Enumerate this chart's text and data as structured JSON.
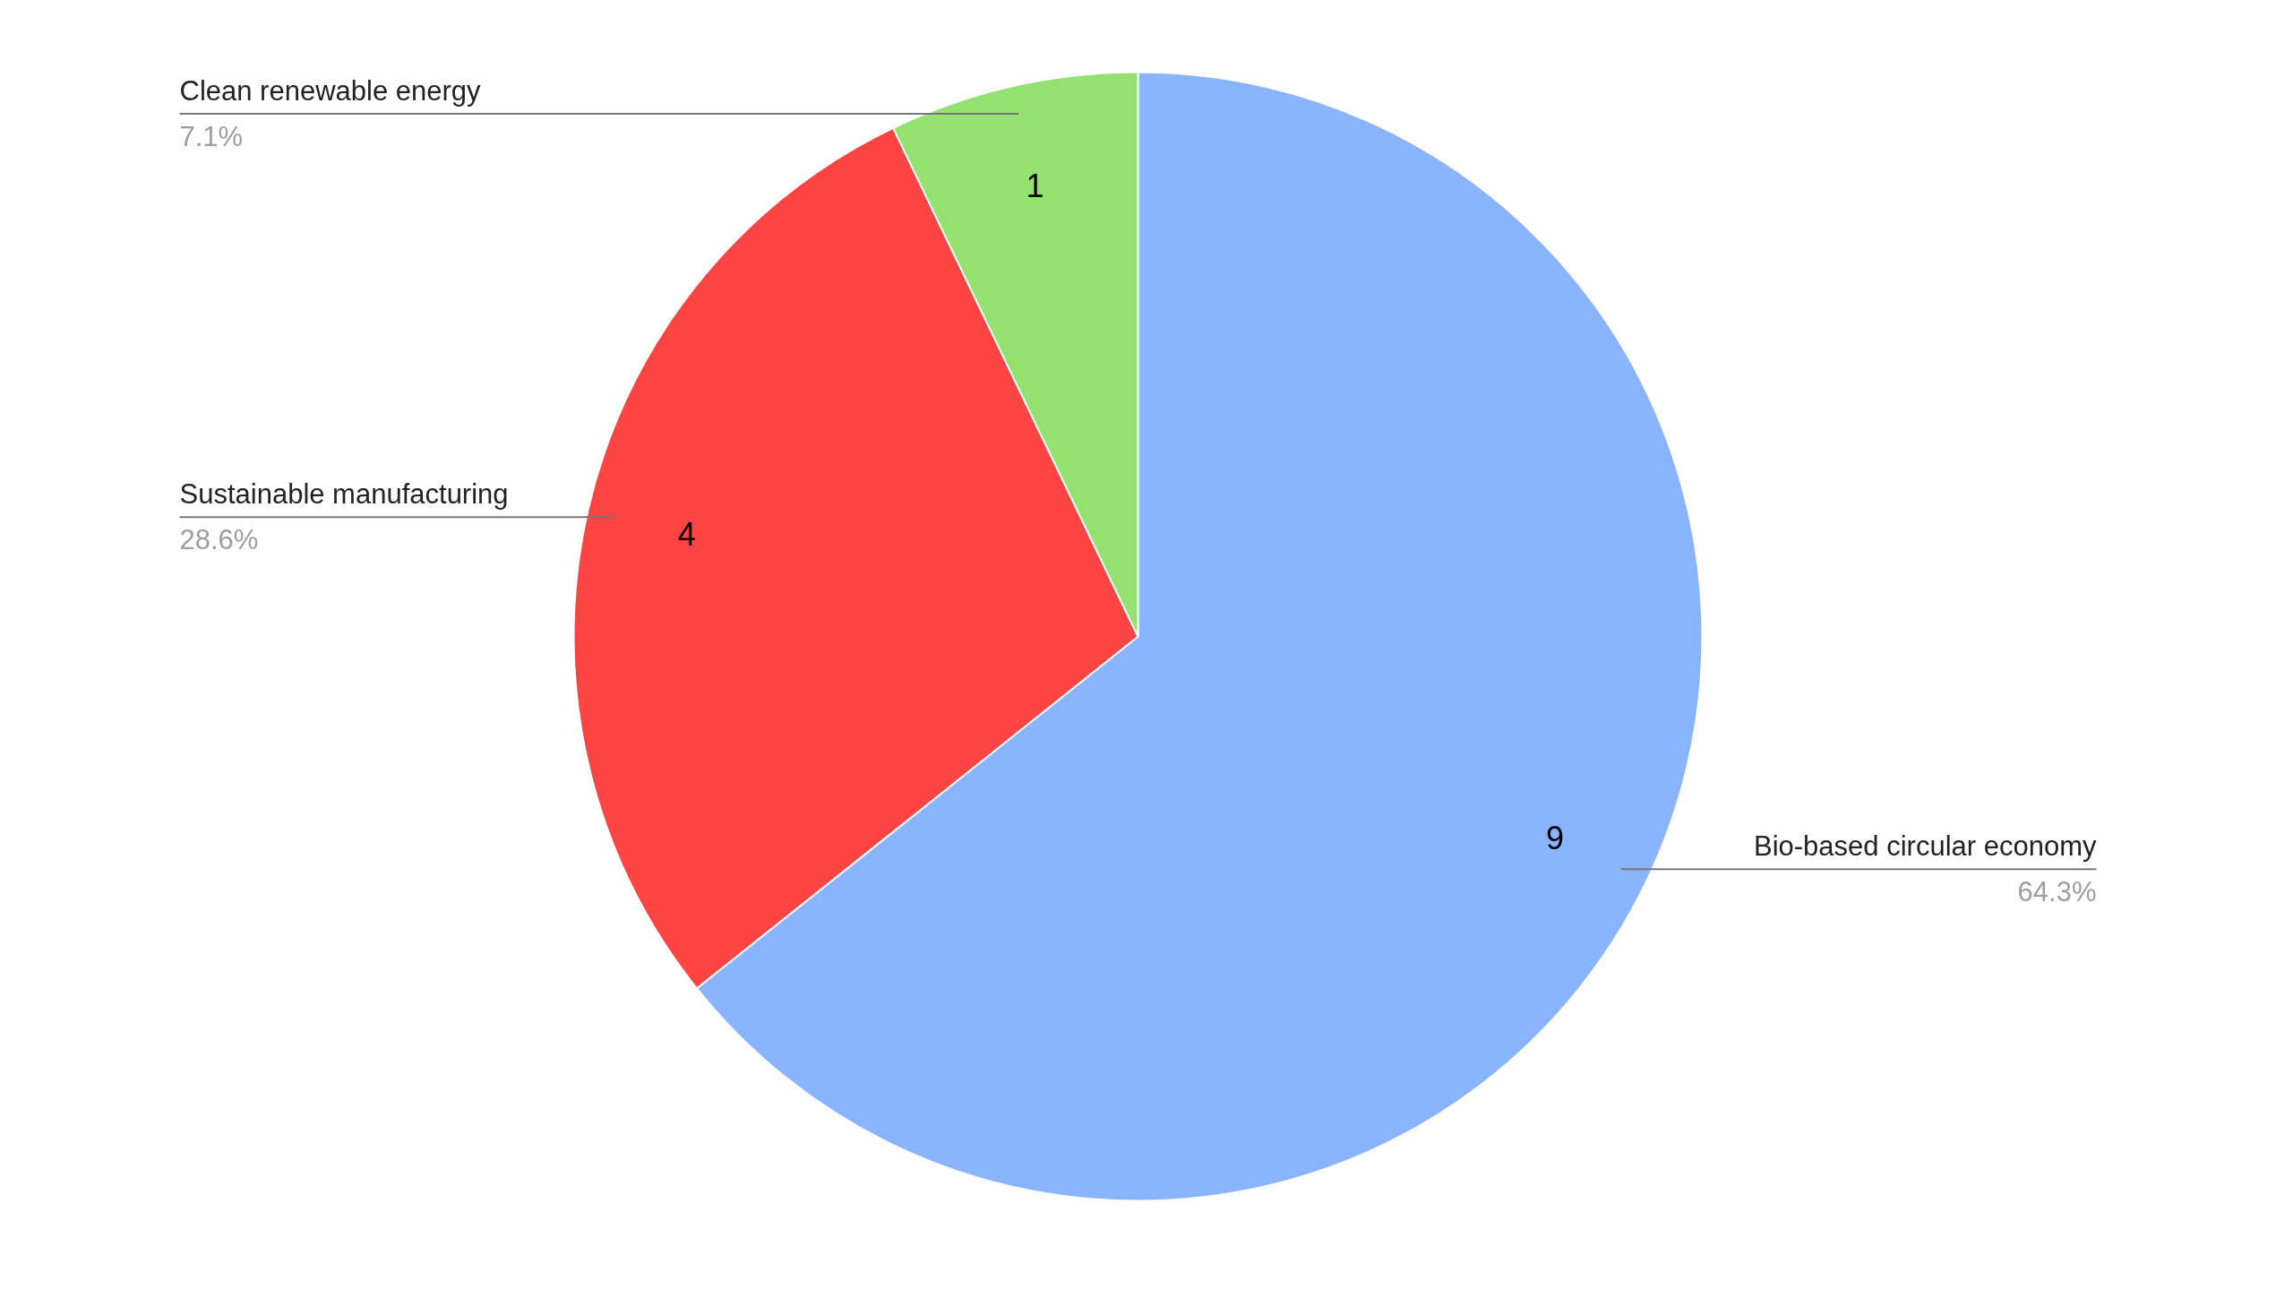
{
  "chart_data": {
    "type": "pie",
    "categories": [
      "Bio-based circular economy",
      "Sustainable manufacturing",
      "Clean renewable energy"
    ],
    "values": [
      9,
      4,
      1
    ],
    "colors": [
      "#8ab4ff",
      "#ff4444",
      "#93e26f"
    ],
    "value_labels": [
      "9",
      "4",
      "1"
    ],
    "annotations": [
      "64.3%",
      "28.6%",
      "7.1%"
    ]
  }
}
